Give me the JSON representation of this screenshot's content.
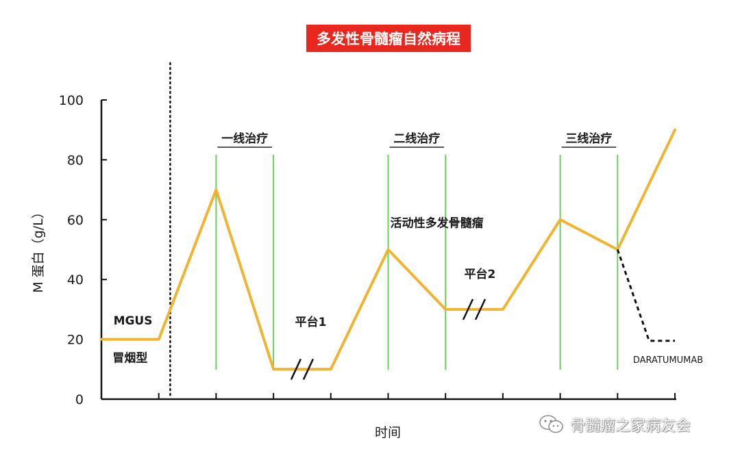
{
  "header": {
    "title": "多发性骨髓瘤自然病程"
  },
  "watermark": {
    "text": "骨髓瘤之家病友会",
    "icon": "wechat-icon"
  },
  "chart_data": {
    "type": "line",
    "xlabel": "时间",
    "ylabel": "M 蛋白（g/L）",
    "ylim": [
      0,
      100
    ],
    "y_ticks": [
      "0",
      "20",
      "40",
      "60",
      "80",
      "100"
    ],
    "x_ticks": [
      0,
      1,
      2,
      3,
      4,
      5,
      6,
      7,
      8,
      9,
      10
    ],
    "xlim": [
      0,
      10
    ],
    "colors": {
      "line": "#f0b430",
      "phase": "#6ccf5a",
      "axis": "#111111"
    },
    "series": [
      {
        "x": [
          0,
          1,
          2,
          3,
          4,
          5,
          6,
          7,
          8,
          9,
          10
        ],
        "y": [
          20,
          20,
          70,
          10,
          10,
          50,
          30,
          30,
          60,
          50,
          90
        ]
      }
    ],
    "dashed_branch": {
      "x": [
        9,
        9.55,
        10
      ],
      "y": [
        50,
        19.5,
        19.5
      ],
      "label": "DARATUMUMAB"
    },
    "divider_x": 1.2,
    "phases": [
      {
        "label": "一线治疗",
        "x": [
          2,
          3
        ]
      },
      {
        "label": "二线治疗",
        "x": [
          5,
          6
        ]
      },
      {
        "label": "三线治疗",
        "x": [
          8,
          9
        ]
      }
    ],
    "annotations": [
      {
        "text": "MGUS",
        "x": 0.55,
        "y": 25,
        "weight": "bold"
      },
      {
        "text": "冒烟型",
        "x": 0.5,
        "y": 12.5,
        "weight": "bold"
      },
      {
        "text": "平台1",
        "x": 3.65,
        "y": 24.5,
        "weight": "bold"
      },
      {
        "text": "平台2",
        "x": 6.6,
        "y": 40.5,
        "weight": "bold"
      },
      {
        "text": "活动性多发骨髓瘤",
        "x": 5.85,
        "y": 57.5,
        "weight": "bold"
      }
    ],
    "breaks": [
      {
        "x": 3.5,
        "y": 10
      },
      {
        "x": 6.5,
        "y": 30
      }
    ]
  }
}
